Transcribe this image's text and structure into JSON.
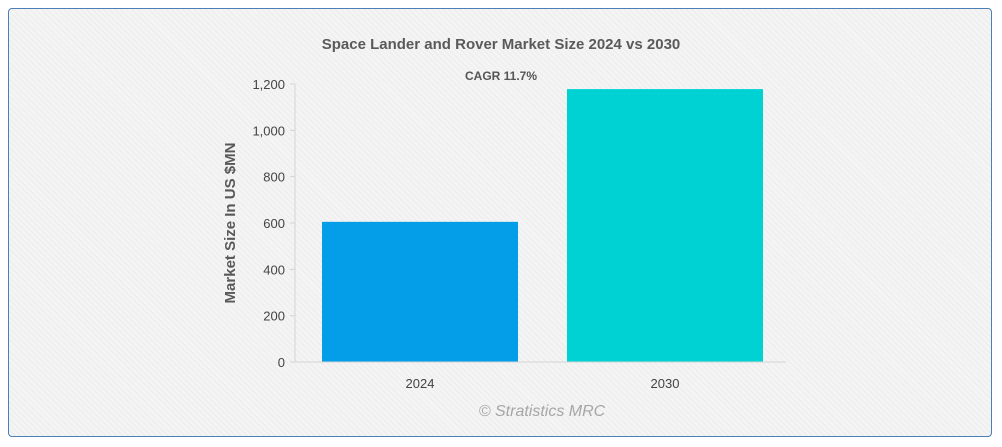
{
  "chart_data": {
    "type": "bar",
    "title": "Space Lander and Rover Market Size 2024 vs 2030",
    "annotation": "CAGR 11.7%",
    "ylabel": "Market Size In US $MN",
    "xlabel": "",
    "categories": [
      "2024",
      "2030"
    ],
    "values": [
      605,
      1178
    ],
    "ylim": [
      0,
      1200
    ],
    "yticks": [
      0,
      200,
      400,
      600,
      800,
      1000,
      1200
    ],
    "ytick_labels": [
      "0",
      "200",
      "400",
      "600",
      "800",
      "1,000",
      "1,200"
    ],
    "bar_colors": [
      "#039de8",
      "#00d2d3"
    ],
    "grid": false,
    "legend": "none"
  },
  "watermark": "© Stratistics MRC"
}
